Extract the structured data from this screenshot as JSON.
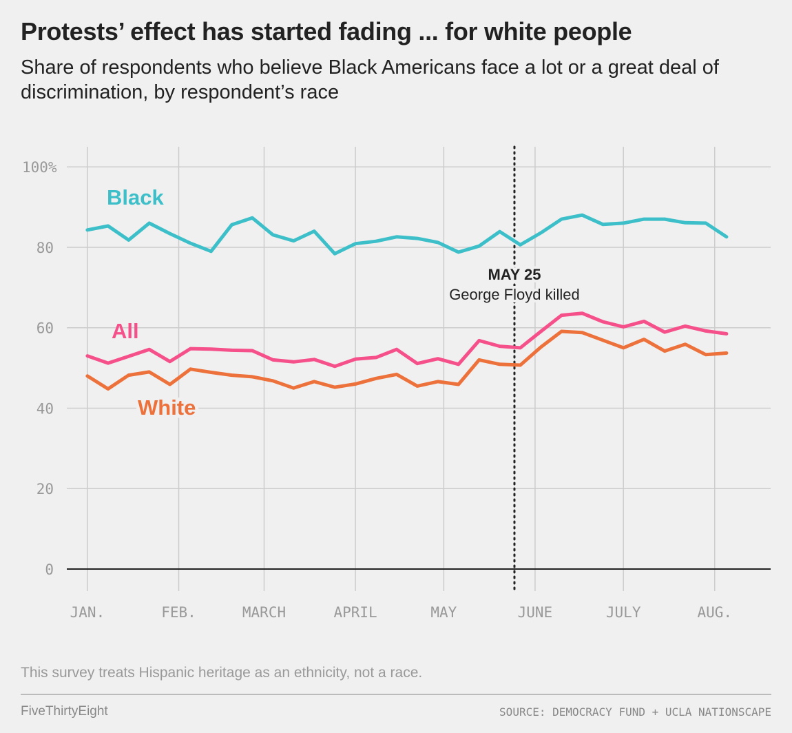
{
  "header": {
    "title": "Protests’ effect has started fading ... for white people",
    "subtitle": "Share of respondents who believe Black Americans face a lot or a great deal of discrimination, by respondent’s race"
  },
  "footer": {
    "note": "This survey treats Hispanic heritage as an ethnicity, not a race.",
    "brand": "FiveThirtyEight",
    "source": "SOURCE: DEMOCRACY FUND + UCLA NATIONSCAPE"
  },
  "chart_data": {
    "type": "line",
    "title": "Protests’ effect has started fading ... for white people",
    "subtitle": "Share of respondents who believe Black Americans face a lot or a great deal of discrimination, by respondent’s race",
    "x_ticks": [
      {
        "label": "JAN.",
        "date": "2020-01-01"
      },
      {
        "label": "FEB.",
        "date": "2020-02-01"
      },
      {
        "label": "MARCH",
        "date": "2020-03-01"
      },
      {
        "label": "APRIL",
        "date": "2020-04-01"
      },
      {
        "label": "MAY",
        "date": "2020-05-01"
      },
      {
        "label": "JUNE",
        "date": "2020-06-01"
      },
      {
        "label": "JULY",
        "date": "2020-07-01"
      },
      {
        "label": "AUG.",
        "date": "2020-08-01"
      }
    ],
    "x_range": [
      "2019-12-25",
      "2020-08-20"
    ],
    "y_ticks": [
      {
        "label": "0",
        "value": 0
      },
      {
        "label": "20",
        "value": 20
      },
      {
        "label": "40",
        "value": 40
      },
      {
        "label": "60",
        "value": 60
      },
      {
        "label": "80",
        "value": 80
      },
      {
        "label": "100%",
        "value": 100
      }
    ],
    "ylim": [
      0,
      105
    ],
    "grid": true,
    "x": [
      "2020-01-01",
      "2020-01-08",
      "2020-01-15",
      "2020-01-22",
      "2020-01-29",
      "2020-02-05",
      "2020-02-12",
      "2020-02-19",
      "2020-02-26",
      "2020-03-04",
      "2020-03-11",
      "2020-03-18",
      "2020-03-25",
      "2020-04-01",
      "2020-04-08",
      "2020-04-15",
      "2020-04-22",
      "2020-04-29",
      "2020-05-06",
      "2020-05-13",
      "2020-05-20",
      "2020-05-27",
      "2020-06-03",
      "2020-06-10",
      "2020-06-17",
      "2020-06-24",
      "2020-07-01",
      "2020-07-08",
      "2020-07-15",
      "2020-07-22",
      "2020-07-29",
      "2020-08-05"
    ],
    "series": [
      {
        "name": "Black",
        "color": "#3cbfc8",
        "values": [
          84.3,
          85.3,
          81.8,
          86.0,
          83.4,
          81.0,
          79.0,
          85.6,
          87.3,
          83.1,
          81.6,
          84.0,
          78.4,
          80.9,
          81.5,
          82.6,
          82.2,
          81.2,
          78.8,
          80.3,
          83.9,
          80.6,
          83.6,
          87.0,
          88.0,
          85.7,
          86.0,
          87.0,
          87.0,
          86.1,
          86.0,
          82.6
        ]
      },
      {
        "name": "All",
        "color": "#f5508a",
        "values": [
          53.0,
          51.2,
          52.9,
          54.6,
          51.6,
          54.8,
          54.7,
          54.4,
          54.3,
          52.0,
          51.5,
          52.1,
          50.4,
          52.2,
          52.6,
          54.6,
          51.1,
          52.3,
          50.9,
          56.8,
          55.4,
          55.0,
          59.1,
          63.1,
          63.6,
          61.5,
          60.2,
          61.6,
          58.9,
          60.4,
          59.2,
          58.5
        ]
      },
      {
        "name": "White",
        "color": "#ec713b",
        "values": [
          48.0,
          44.8,
          48.2,
          49.0,
          45.9,
          49.7,
          48.9,
          48.2,
          47.8,
          46.8,
          45.0,
          46.6,
          45.2,
          46.0,
          47.4,
          48.4,
          45.5,
          46.6,
          45.9,
          52.0,
          50.9,
          50.7,
          55.2,
          59.1,
          58.8,
          56.9,
          55.0,
          57.1,
          54.2,
          55.9,
          53.3,
          53.7
        ]
      }
    ],
    "series_labels": [
      "Black",
      "All",
      "White"
    ],
    "annotation": {
      "date": "2020-05-25",
      "heading": "MAY 25",
      "text": "George Floyd killed"
    }
  }
}
